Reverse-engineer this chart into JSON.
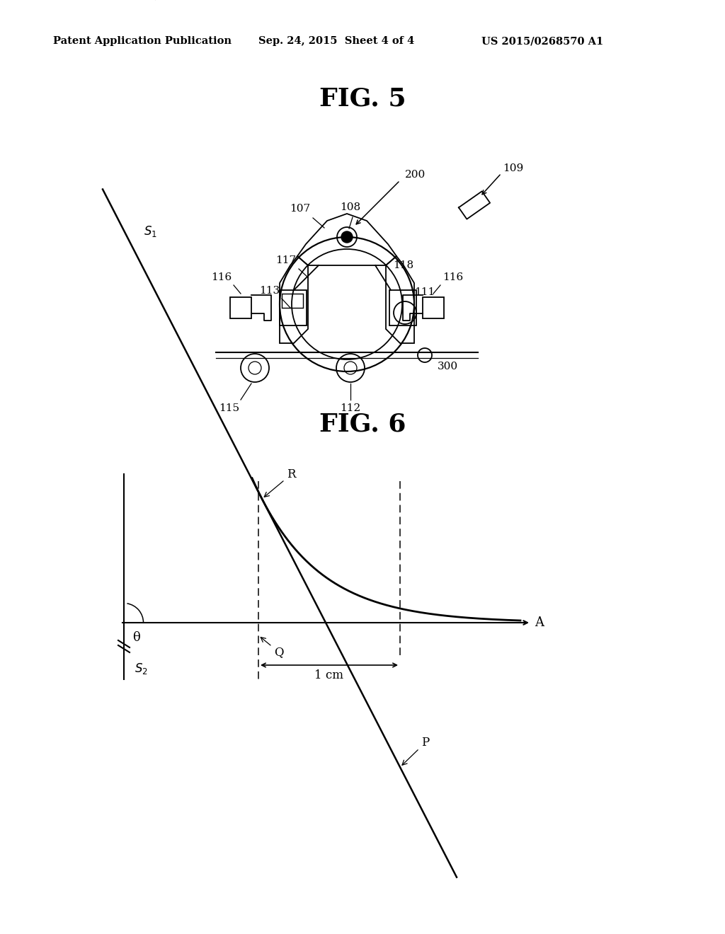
{
  "header_left": "Patent Application Publication",
  "header_mid": "Sep. 24, 2015  Sheet 4 of 4",
  "header_right": "US 2015/0268570 A1",
  "fig5_title": "FIG. 5",
  "fig6_title": "FIG. 6",
  "bg_color": "#ffffff"
}
